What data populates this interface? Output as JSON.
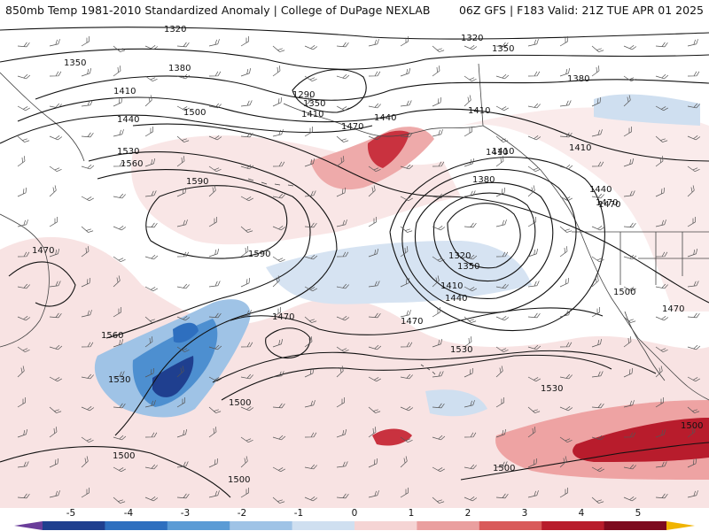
{
  "header": {
    "title": "850mb Temp 1981-2010 Standardized Anomaly | College of DuPage NEXLAB",
    "run": "06Z GFS | F183 Valid: 21Z TUE APR 01 2025"
  },
  "contour_labels": [
    {
      "id": "c1",
      "text": "1320"
    },
    {
      "id": "c2",
      "text": "1320"
    },
    {
      "id": "c3",
      "text": "1350"
    },
    {
      "id": "c4",
      "text": "1350"
    },
    {
      "id": "c5",
      "text": "1380"
    },
    {
      "id": "c6",
      "text": "1380"
    },
    {
      "id": "c7",
      "text": "1410"
    },
    {
      "id": "c8",
      "text": "1410"
    },
    {
      "id": "c9",
      "text": "1410"
    },
    {
      "id": "c10",
      "text": "1410"
    },
    {
      "id": "c11",
      "text": "1440"
    },
    {
      "id": "c12",
      "text": "1440"
    },
    {
      "id": "c13",
      "text": "1470"
    },
    {
      "id": "c14",
      "text": "1470"
    },
    {
      "id": "c15",
      "text": "1500"
    },
    {
      "id": "c16",
      "text": "1530"
    },
    {
      "id": "c17",
      "text": "1560"
    },
    {
      "id": "c18",
      "text": "1590"
    },
    {
      "id": "c19",
      "text": "1590"
    },
    {
      "id": "c20",
      "text": "1290"
    },
    {
      "id": "c21",
      "text": "1350"
    },
    {
      "id": "c22",
      "text": "1410"
    },
    {
      "id": "c23",
      "text": "1380"
    },
    {
      "id": "c24",
      "text": "1320"
    },
    {
      "id": "c25",
      "text": "1350"
    },
    {
      "id": "c26",
      "text": "1410"
    },
    {
      "id": "c27",
      "text": "1440"
    },
    {
      "id": "c28",
      "text": "1470"
    },
    {
      "id": "c29",
      "text": "1470"
    },
    {
      "id": "c30",
      "text": "1560"
    },
    {
      "id": "c31",
      "text": "1530"
    },
    {
      "id": "c32",
      "text": "1500"
    },
    {
      "id": "c33",
      "text": "1530"
    },
    {
      "id": "c34",
      "text": "1530"
    },
    {
      "id": "c35",
      "text": "1500"
    },
    {
      "id": "c36",
      "text": "1500"
    },
    {
      "id": "c37",
      "text": "1500"
    },
    {
      "id": "c38",
      "text": "1470"
    },
    {
      "id": "c39",
      "text": "1470"
    },
    {
      "id": "c40",
      "text": "1500"
    },
    {
      "id": "c41",
      "text": "1440"
    },
    {
      "id": "c42",
      "text": "1410"
    },
    {
      "id": "c43",
      "text": "1470"
    },
    {
      "id": "c44",
      "text": "1500"
    }
  ],
  "colorbar": {
    "labels": [
      "-5",
      "-4",
      "-3",
      "-2",
      "-1",
      "0",
      "1",
      "2",
      "3",
      "4",
      "5"
    ],
    "colors": [
      "#6a3d9a",
      "#1f3f8f",
      "#2e6fbf",
      "#5b9bd5",
      "#9fc3e6",
      "#cfdff0",
      "#f5d4d4",
      "#ea9f9f",
      "#d95a5a",
      "#b81c2c",
      "#7d0a1e",
      "#f0b400"
    ]
  }
}
